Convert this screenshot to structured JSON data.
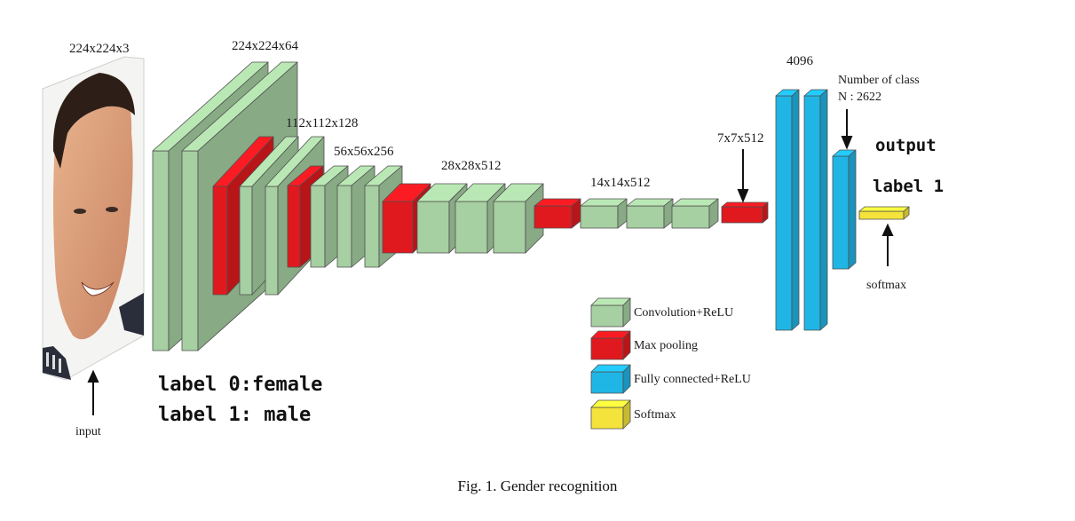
{
  "diagram": {
    "input_dims": "224x224x3",
    "input_label": "input",
    "stage_dims": [
      {
        "id": "s1",
        "text": "224x224x64"
      },
      {
        "id": "s2",
        "text": "112x112x128"
      },
      {
        "id": "s3",
        "text": "56x56x256"
      },
      {
        "id": "s4",
        "text": "28x28x512"
      },
      {
        "id": "s5",
        "text": "14x14x512"
      },
      {
        "id": "s6",
        "text": "7x7x512"
      }
    ],
    "fc_dims": "4096",
    "num_classes_line1": "Number of class",
    "num_classes_line2": "N : 2622",
    "output_title": "output",
    "output_label": "label 1",
    "softmax_label": "softmax",
    "labels": {
      "line1": "label 0:female",
      "line2": "label 1: male"
    },
    "legend": [
      {
        "text": "Convolution+ReLU",
        "color": "#a6cfa2"
      },
      {
        "text": "Max pooling",
        "color": "#e0191f"
      },
      {
        "text": "Fully connected+ReLU",
        "color": "#1fb6e6"
      },
      {
        "text": "Softmax",
        "color": "#f3e33a"
      }
    ]
  },
  "caption": "Fig. 1. Gender recognition"
}
